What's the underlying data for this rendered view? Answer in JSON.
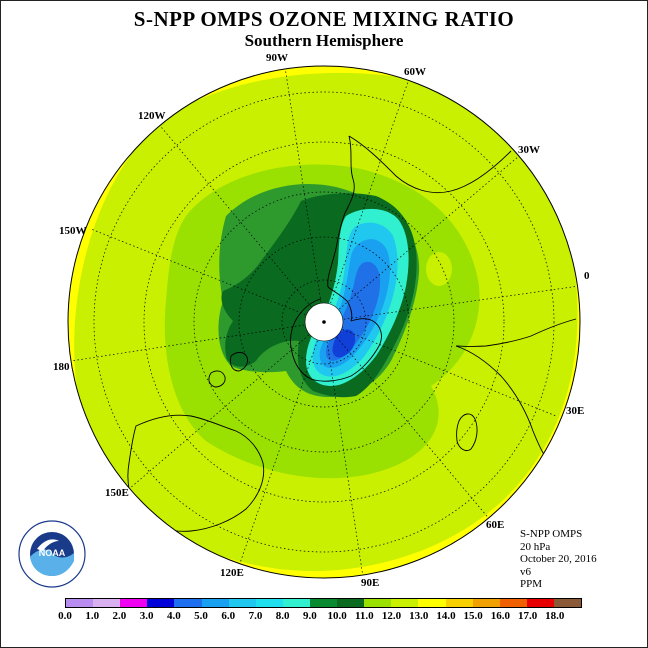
{
  "header": {
    "title": "S-NPP OMPS OZONE MIXING RATIO",
    "subtitle": "Southern Hemisphere"
  },
  "map": {
    "projection": "south-polar-stereographic",
    "longitude_labels": [
      "90W",
      "60W",
      "30W",
      "0",
      "30E",
      "60E",
      "90E",
      "120E",
      "150E",
      "180",
      "150W",
      "120W"
    ],
    "colors": {
      "background": "#ffff00",
      "yellow_green": "#c8f000",
      "light_green": "#9ae000",
      "medium_green": "#2e9a2e",
      "dark_green": "#0a6a20",
      "aqua": "#30f0d0",
      "cyan": "#20c8f0",
      "light_blue": "#1aa0f0",
      "blue": "#2070e8",
      "dark_blue": "#1040d8",
      "pole_mask": "#ffffff",
      "coastline": "#000000"
    }
  },
  "info": {
    "lines": [
      "S-NPP OMPS",
      "20 hPa",
      "October 20, 2016",
      "v6",
      "PPM"
    ]
  },
  "logo": {
    "text": "NOAA"
  },
  "colorbar": {
    "unit": "PPM",
    "ticks": [
      "0.0",
      "1.0",
      "2.0",
      "3.0",
      "4.0",
      "5.0",
      "6.0",
      "7.0",
      "8.0",
      "9.0",
      "10.0",
      "11.0",
      "12.0",
      "13.0",
      "14.0",
      "15.0",
      "16.0",
      "17.0",
      "18.0"
    ],
    "colors": [
      "#b88cf0",
      "#d8b0f0",
      "#f000f0",
      "#0000d8",
      "#1e6ef0",
      "#1aa0f0",
      "#20c8f0",
      "#20e0f0",
      "#30f0d0",
      "#0a8a30",
      "#0a6a20",
      "#9ae000",
      "#c8f000",
      "#ffff00",
      "#f8d000",
      "#f0a000",
      "#f06000",
      "#e80000",
      "#8a5a38"
    ]
  }
}
